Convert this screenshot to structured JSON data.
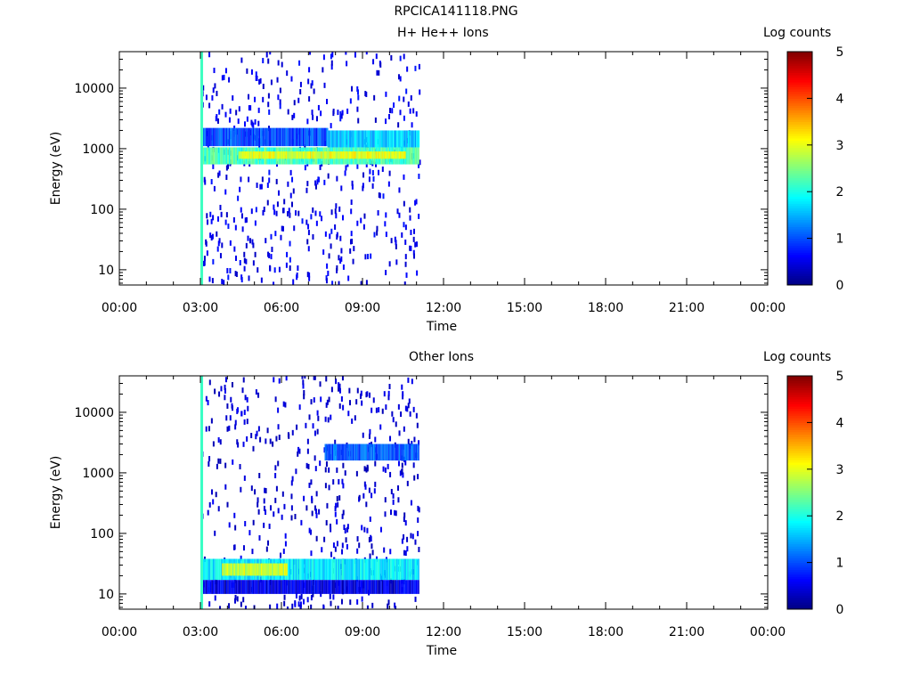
{
  "page": {
    "title": "RPCICA141118.PNG"
  },
  "panels": [
    {
      "title": "H+ He++ Ions",
      "colorbar_label": "Log counts"
    },
    {
      "title": "Other Ions",
      "colorbar_label": "Log counts"
    }
  ],
  "chart_data": [
    {
      "type": "heatmap",
      "title": "H+ He++ Ions",
      "xlabel": "Time",
      "ylabel": "Energy (eV)",
      "x_ticks": [
        "00:00",
        "03:00",
        "06:00",
        "09:00",
        "12:00",
        "15:00",
        "18:00",
        "21:00",
        "00:00"
      ],
      "xlim_hours": [
        0,
        24
      ],
      "y_scale": "log",
      "y_ticks": [
        "10",
        "100",
        "1000",
        "10000"
      ],
      "ylim": [
        5.6,
        40000
      ],
      "colorbar": {
        "label": "Log counts",
        "ticks": [
          "0",
          "1",
          "2",
          "3",
          "4",
          "5"
        ],
        "range": [
          0,
          5
        ],
        "colormap": "jet"
      },
      "data_coverage_hours": [
        3.0,
        11.1
      ],
      "bands": [
        {
          "t": [
            3.0,
            3.1
          ],
          "e": [
            5.6,
            40000
          ],
          "log_counts": 2.0
        },
        {
          "t": [
            3.1,
            7.7
          ],
          "e": [
            1100,
            2200
          ],
          "log_counts": 1.0
        },
        {
          "t": [
            7.7,
            11.1
          ],
          "e": [
            1050,
            2000
          ],
          "log_counts": 1.6
        },
        {
          "t": [
            3.1,
            11.1
          ],
          "e": [
            550,
            1050
          ],
          "log_counts": 2.2
        },
        {
          "t": [
            4.4,
            10.6
          ],
          "e": [
            680,
            900
          ],
          "log_counts": 3.0
        }
      ],
      "scatter_level": 0.5
    },
    {
      "type": "heatmap",
      "title": "Other Ions",
      "xlabel": "Time",
      "ylabel": "Energy (eV)",
      "x_ticks": [
        "00:00",
        "03:00",
        "06:00",
        "09:00",
        "12:00",
        "15:00",
        "18:00",
        "21:00",
        "00:00"
      ],
      "xlim_hours": [
        0,
        24
      ],
      "y_scale": "log",
      "y_ticks": [
        "10",
        "100",
        "1000",
        "10000"
      ],
      "ylim": [
        5.6,
        40000
      ],
      "colorbar": {
        "label": "Log counts",
        "ticks": [
          "0",
          "1",
          "2",
          "3",
          "4",
          "5"
        ],
        "range": [
          0,
          5
        ],
        "colormap": "jet"
      },
      "data_coverage_hours": [
        3.0,
        11.1
      ],
      "bands": [
        {
          "t": [
            3.0,
            3.1
          ],
          "e": [
            5.6,
            40000
          ],
          "log_counts": 2.0
        },
        {
          "t": [
            3.1,
            11.1
          ],
          "e": [
            17,
            38
          ],
          "log_counts": 1.8
        },
        {
          "t": [
            3.8,
            6.2
          ],
          "e": [
            20,
            32
          ],
          "log_counts": 2.9
        },
        {
          "t": [
            7.6,
            11.1
          ],
          "e": [
            1600,
            3000
          ],
          "log_counts": 1.1
        },
        {
          "t": [
            3.1,
            11.1
          ],
          "e": [
            10,
            17
          ],
          "log_counts": 0.5
        }
      ],
      "scatter_level": 0.4
    }
  ]
}
